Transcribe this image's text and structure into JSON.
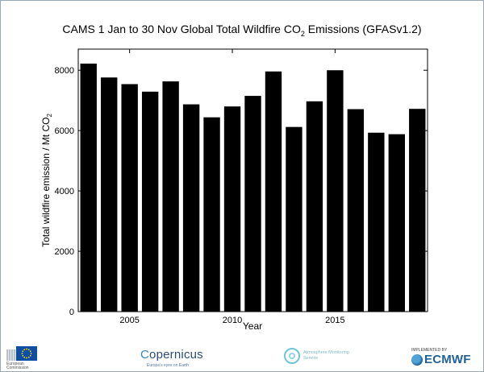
{
  "chart_data": {
    "type": "bar",
    "title_main": "CAMS 1 Jan to 30 Nov Global Total Wildfire CO",
    "title_sub": "2",
    "title_end": " Emissions (GFASv1.2)",
    "xlabel": "Year",
    "ylabel_main": "Total wildfire emission / Mt CO",
    "ylabel_sub": "2",
    "x": [
      2003,
      2004,
      2005,
      2006,
      2007,
      2008,
      2009,
      2010,
      2011,
      2012,
      2013,
      2014,
      2015,
      2016,
      2017,
      2018,
      2019
    ],
    "values": [
      8220,
      7760,
      7540,
      7290,
      7630,
      6870,
      6440,
      6800,
      7150,
      7960,
      6120,
      6970,
      8000,
      6710,
      5930,
      5880,
      6720
    ],
    "xlim": [
      2002.5,
      2019.5
    ],
    "ylim": [
      0,
      8700
    ],
    "xticks": [
      "2005",
      "2010",
      "2015"
    ],
    "yticks": [
      "0",
      "2000",
      "4000",
      "6000",
      "8000"
    ],
    "bar_color": "#000000",
    "grid": false
  },
  "footer": {
    "ec_text": "European Commission",
    "copernicus_name": "opernicus",
    "copernicus_c": "C",
    "copernicus_tag": "Europe's eyes on Earth",
    "ams_text": "Atmosphere Monitoring Service",
    "ecmwf_implemented": "IMPLEMENTED BY",
    "ecmwf_name": "ECMWF"
  }
}
